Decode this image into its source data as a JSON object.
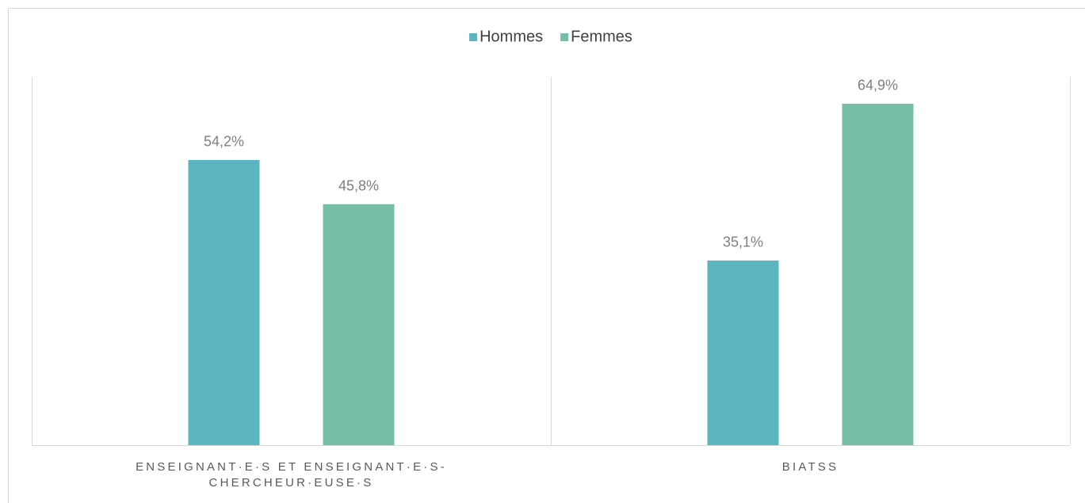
{
  "chart_data": {
    "type": "bar",
    "categories": [
      "ENSEIGNANT·E·S ET ENSEIGNANT·E·S-CHERCHEUR·EUSE·S",
      "BIATSS"
    ],
    "series": [
      {
        "name": "Hommes",
        "color": "#5ab5bf",
        "values": [
          54.2,
          35.1
        ],
        "value_labels": [
          "54,2%",
          "35,1%"
        ]
      },
      {
        "name": "Femmes",
        "color": "#76bea7",
        "values": [
          45.8,
          64.9
        ],
        "value_labels": [
          "45,8%",
          "64,9%"
        ]
      }
    ],
    "ylim": [
      0,
      70
    ],
    "legend": "top"
  }
}
